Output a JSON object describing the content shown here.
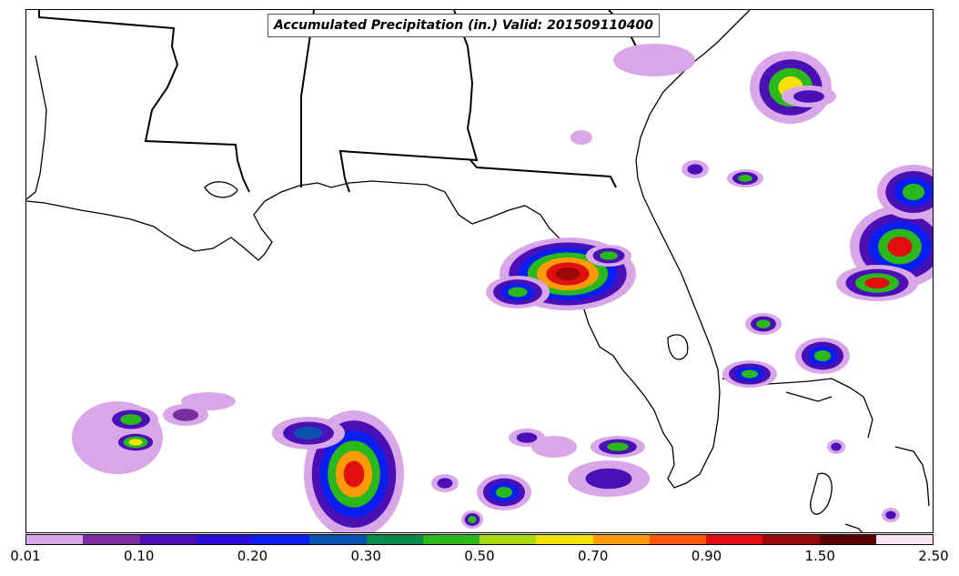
{
  "title": "Accumulated Precipitation (in.) Valid: 201509110400",
  "colorbar": {
    "colors": [
      "#d9a7e8",
      "#7b2ea0",
      "#4a0fb5",
      "#2a0fd6",
      "#0a1ef0",
      "#0a52b0",
      "#0a8a4a",
      "#2ab81a",
      "#a8d80f",
      "#f5e10a",
      "#ff9a0a",
      "#ff5a0a",
      "#e01010",
      "#9a0a0a",
      "#5a0505",
      "#ffe4f5"
    ],
    "tick_labels": [
      "0.01",
      "0.10",
      "0.20",
      "0.30",
      "0.50",
      "0.70",
      "0.90",
      "1.50",
      "2.50"
    ]
  },
  "map": {
    "type": "precipitation-map",
    "region": "Gulf of Mexico / Southeastern US",
    "boundary_color": "#000000",
    "land_fill": "#ffffff"
  }
}
